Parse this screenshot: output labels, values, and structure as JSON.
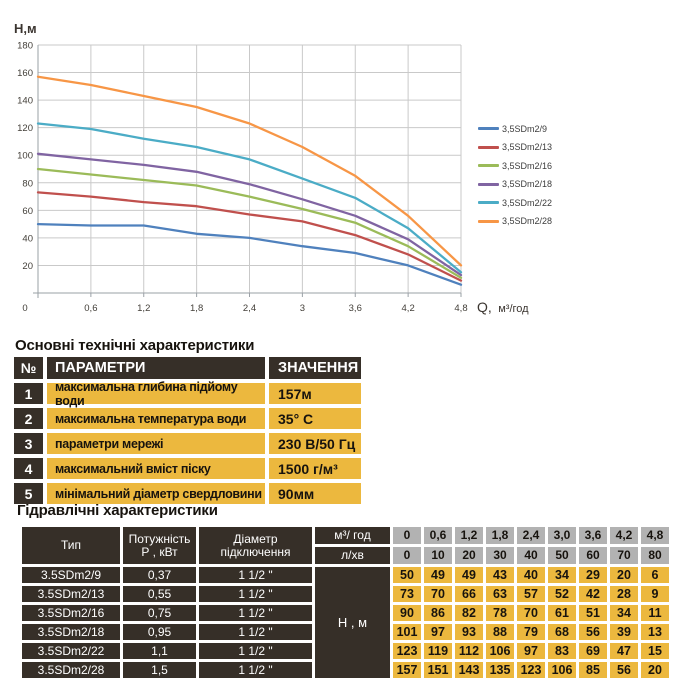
{
  "colors": {
    "accent_yellow": "#ecb83e",
    "cell_dark": "#362f28",
    "cell_gray": "#b2b2b2",
    "gridline": "#c9c9c9",
    "axis": "#9aa0a6"
  },
  "chart_data": {
    "type": "line",
    "title": "",
    "ylabel": "Н,м",
    "xlabel": "Q, м³/год",
    "xlabel_main": "Q,",
    "xlabel_unit": "м³/год",
    "xlim": [
      0,
      4.8
    ],
    "ylim": [
      0,
      180
    ],
    "grid": true,
    "legend_position": "right",
    "x": [
      0,
      0.6,
      1.2,
      1.8,
      2.4,
      3.0,
      3.6,
      4.2,
      4.8
    ],
    "x_tick_labels": [
      "0",
      "0,6",
      "1,2",
      "1,8",
      "2,4",
      "3",
      "3,6",
      "4,2",
      "4,8"
    ],
    "y_ticks": [
      0,
      20,
      40,
      60,
      80,
      100,
      120,
      140,
      160,
      180
    ],
    "series": [
      {
        "name": "3,5SDm2/9",
        "color": "#4F81BD",
        "values": [
          50,
          49,
          49,
          43,
          40,
          34,
          29,
          20,
          6
        ]
      },
      {
        "name": "3,5SDm2/13",
        "color": "#C0504D",
        "values": [
          73,
          70,
          66,
          63,
          57,
          52,
          42,
          28,
          9
        ]
      },
      {
        "name": "3,5SDm2/16",
        "color": "#9BBB59",
        "values": [
          90,
          86,
          82,
          78,
          70,
          61,
          51,
          34,
          11
        ]
      },
      {
        "name": "3,5SDm2/18",
        "color": "#8064A2",
        "values": [
          101,
          97,
          93,
          88,
          79,
          68,
          56,
          39,
          13
        ]
      },
      {
        "name": "3,5SDm2/22",
        "color": "#4BACC6",
        "values": [
          123,
          119,
          112,
          106,
          97,
          83,
          69,
          47,
          15
        ]
      },
      {
        "name": "3,5SDm2/28",
        "color": "#F79646",
        "values": [
          157,
          151,
          143,
          135,
          123,
          106,
          85,
          56,
          20
        ]
      }
    ]
  },
  "tech_table": {
    "title": "Основні технічні характеристики",
    "headers": {
      "num": "№",
      "param": "ПАРАМЕТРИ",
      "value": "ЗНАЧЕННЯ"
    },
    "rows": [
      {
        "num": "1",
        "param": "максимальна глибина підйому води",
        "value": "157м"
      },
      {
        "num": "2",
        "param": "максимальна температура води",
        "value": "35° С"
      },
      {
        "num": "3",
        "param": "параметри мережі",
        "value": "230 В/50 Гц"
      },
      {
        "num": "4",
        "param": "максимальний вміст піску",
        "value": "1500 г/м³"
      },
      {
        "num": "5",
        "param": "мінімальний діаметр свердловини",
        "value": "90мм"
      }
    ]
  },
  "hydraulic_table": {
    "title": "Гідравлічні характеристики",
    "col_headers": {
      "type": "Тип",
      "power_line1": "Потужність",
      "power_line2": "Р , кВт",
      "diameter_line1": "Діаметр",
      "diameter_line2": "підключення",
      "flow_m3h": "м³/ год",
      "flow_lmin": "л/хв",
      "head_label": "Н , м"
    },
    "flow_m3h_values": [
      "0",
      "0,6",
      "1,2",
      "1,8",
      "2,4",
      "3,0",
      "3,6",
      "4,2",
      "4,8"
    ],
    "flow_lmin_values": [
      "0",
      "10",
      "20",
      "30",
      "40",
      "50",
      "60",
      "70",
      "80"
    ],
    "rows": [
      {
        "type": "3.5SDm2/9",
        "power": "0,37",
        "diameter": "1 1/2 \"",
        "heads": [
          "50",
          "49",
          "49",
          "43",
          "40",
          "34",
          "29",
          "20",
          "6"
        ]
      },
      {
        "type": "3.5SDm2/13",
        "power": "0,55",
        "diameter": "1 1/2 \"",
        "heads": [
          "73",
          "70",
          "66",
          "63",
          "57",
          "52",
          "42",
          "28",
          "9"
        ]
      },
      {
        "type": "3.5SDm2/16",
        "power": "0,75",
        "diameter": "1 1/2 \"",
        "heads": [
          "90",
          "86",
          "82",
          "78",
          "70",
          "61",
          "51",
          "34",
          "11"
        ]
      },
      {
        "type": "3.5SDm2/18",
        "power": "0,95",
        "diameter": "1 1/2 \"",
        "heads": [
          "101",
          "97",
          "93",
          "88",
          "79",
          "68",
          "56",
          "39",
          "13"
        ]
      },
      {
        "type": "3.5SDm2/22",
        "power": "1,1",
        "diameter": "1 1/2 \"",
        "heads": [
          "123",
          "119",
          "112",
          "106",
          "97",
          "83",
          "69",
          "47",
          "15"
        ]
      },
      {
        "type": "3.5SDm2/28",
        "power": "1,5",
        "diameter": "1 1/2 \"",
        "heads": [
          "157",
          "151",
          "143",
          "135",
          "123",
          "106",
          "85",
          "56",
          "20"
        ]
      }
    ]
  }
}
